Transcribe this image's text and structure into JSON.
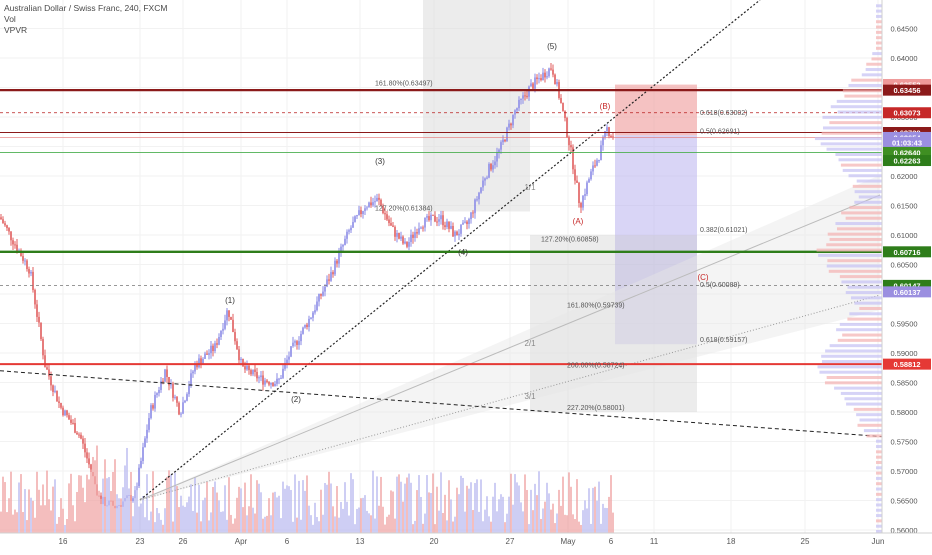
{
  "header": {
    "symbol_line": "Australian Dollar / Swiss Franc, 240, FXCM",
    "indicator_vol": "Vol",
    "indicator_vpvr": "VPVR"
  },
  "colors": {
    "up": "#8a8ae6",
    "down": "#e05c5c",
    "vol_up": "#b9b9f0",
    "vol_down": "#f0a3a3",
    "dark_red": "#8b1a1a",
    "red": "#e53935",
    "green": "#2e7d1a",
    "purple": "#9b8fe0",
    "grid": "#f2f2f2"
  },
  "chart_data": {
    "type": "candlestick",
    "x_tick_labels": [
      "16",
      "23",
      "26",
      "Apr",
      "6",
      "13",
      "20",
      "27",
      "May",
      "6",
      "11",
      "18",
      "25",
      "Jun"
    ],
    "y_ticks": [
      "0.64500",
      "0.64000",
      "0.63500",
      "0.63000",
      "0.62500",
      "0.62000",
      "0.61500",
      "0.61000",
      "0.60500",
      "0.60000",
      "0.59500",
      "0.59000",
      "0.58500",
      "0.58000",
      "0.57500",
      "0.57000",
      "0.56500",
      "0.56000"
    ],
    "ylim": [
      0.5595,
      0.6495
    ],
    "path_anchors": [
      {
        "t": 0,
        "p": 0.613
      },
      {
        "t": 15,
        "p": 0.6085
      },
      {
        "t": 30,
        "p": 0.604
      },
      {
        "t": 45,
        "p": 0.588
      },
      {
        "t": 60,
        "p": 0.581
      },
      {
        "t": 80,
        "p": 0.576
      },
      {
        "t": 100,
        "p": 0.565
      },
      {
        "t": 115,
        "p": 0.564
      },
      {
        "t": 135,
        "p": 0.566
      },
      {
        "t": 150,
        "p": 0.58
      },
      {
        "t": 165,
        "p": 0.587
      },
      {
        "t": 180,
        "p": 0.58
      },
      {
        "t": 195,
        "p": 0.588
      },
      {
        "t": 215,
        "p": 0.591
      },
      {
        "t": 228,
        "p": 0.5975
      },
      {
        "t": 242,
        "p": 0.5875
      },
      {
        "t": 262,
        "p": 0.5855
      },
      {
        "t": 278,
        "p": 0.585
      },
      {
        "t": 290,
        "p": 0.59
      },
      {
        "t": 310,
        "p": 0.596
      },
      {
        "t": 330,
        "p": 0.603
      },
      {
        "t": 350,
        "p": 0.611
      },
      {
        "t": 365,
        "p": 0.615
      },
      {
        "t": 378,
        "p": 0.616
      },
      {
        "t": 392,
        "p": 0.611
      },
      {
        "t": 406,
        "p": 0.608
      },
      {
        "t": 420,
        "p": 0.612
      },
      {
        "t": 440,
        "p": 0.613
      },
      {
        "t": 455,
        "p": 0.61
      },
      {
        "t": 468,
        "p": 0.612
      },
      {
        "t": 485,
        "p": 0.62
      },
      {
        "t": 500,
        "p": 0.6245
      },
      {
        "t": 515,
        "p": 0.631
      },
      {
        "t": 530,
        "p": 0.635
      },
      {
        "t": 545,
        "p": 0.6375
      },
      {
        "t": 552,
        "p": 0.6385
      },
      {
        "t": 560,
        "p": 0.633
      },
      {
        "t": 570,
        "p": 0.625
      },
      {
        "t": 580,
        "p": 0.615
      },
      {
        "t": 590,
        "p": 0.62
      },
      {
        "t": 600,
        "p": 0.624
      },
      {
        "t": 607,
        "p": 0.628
      },
      {
        "t": 614,
        "p": 0.6265
      }
    ],
    "volume_note": "volume histogram at bottom, up/down colored",
    "volume_profile": "VPVR horizontal histogram at right edge",
    "levels": [
      {
        "price": 0.63552,
        "label": "0.63552",
        "color": "#ef9a9a"
      },
      {
        "price": 0.63456,
        "label": "0.63456",
        "color": "#8b1a1a"
      },
      {
        "price": 0.63073,
        "label": "0.63073",
        "color": "#c62828"
      },
      {
        "price": 0.62738,
        "label": "0.62738",
        "color": "#8b1a1a"
      },
      {
        "price": 0.62654,
        "label": "0.62654",
        "color": "#9b8fe0"
      },
      {
        "price": 0.6257,
        "label": "01:03:43",
        "color": "#9b8fe0"
      },
      {
        "price": 0.624,
        "label": "0.62640",
        "color": "#3f8f22"
      },
      {
        "price": 0.62263,
        "label": "0.62263",
        "color": "#2e7d1a"
      },
      {
        "price": 0.60716,
        "label": "0.60716",
        "color": "#2e7d1a"
      },
      {
        "price": 0.60147,
        "label": "0.60147",
        "color": "#2e7d1a"
      },
      {
        "price": 0.60037,
        "label": "0.60137",
        "color": "#9b8fe0"
      },
      {
        "price": 0.58812,
        "label": "0.58812",
        "color": "#e53935"
      }
    ],
    "fib_labels": [
      {
        "text": "161.80%(0.63497)",
        "price": 0.63497
      },
      {
        "text": "0.618(0.63002)",
        "price": 0.63002
      },
      {
        "text": "0.5(0.62691)",
        "price": 0.62691
      },
      {
        "text": "127.20%(0.61384)",
        "price": 0.61384
      },
      {
        "text": "0.382(0.61021)",
        "price": 0.61021
      },
      {
        "text": "127.20%(0.60858)",
        "price": 0.60858
      },
      {
        "text": "0.5(0.60089)",
        "price": 0.60089
      },
      {
        "text": "161.80%(0.59739)",
        "price": 0.59739
      },
      {
        "text": "0.618(0.59157)",
        "price": 0.59157
      },
      {
        "text": "200.00%(0.58724)",
        "price": 0.58724
      },
      {
        "text": "227.20%(0.58001)",
        "price": 0.58001
      }
    ],
    "wave_labels": [
      {
        "text": "(1)",
        "color": "#333"
      },
      {
        "text": "(2)",
        "color": "#333"
      },
      {
        "text": "(3)",
        "color": "#333"
      },
      {
        "text": "(4)",
        "color": "#333"
      },
      {
        "text": "(5)",
        "color": "#333"
      },
      {
        "text": "(A)",
        "color": "#c62828"
      },
      {
        "text": "(B)",
        "color": "#c62828"
      },
      {
        "text": "(C)",
        "color": "#c62828"
      }
    ],
    "gann_labels": [
      "1/1",
      "2/1",
      "3/1"
    ]
  }
}
